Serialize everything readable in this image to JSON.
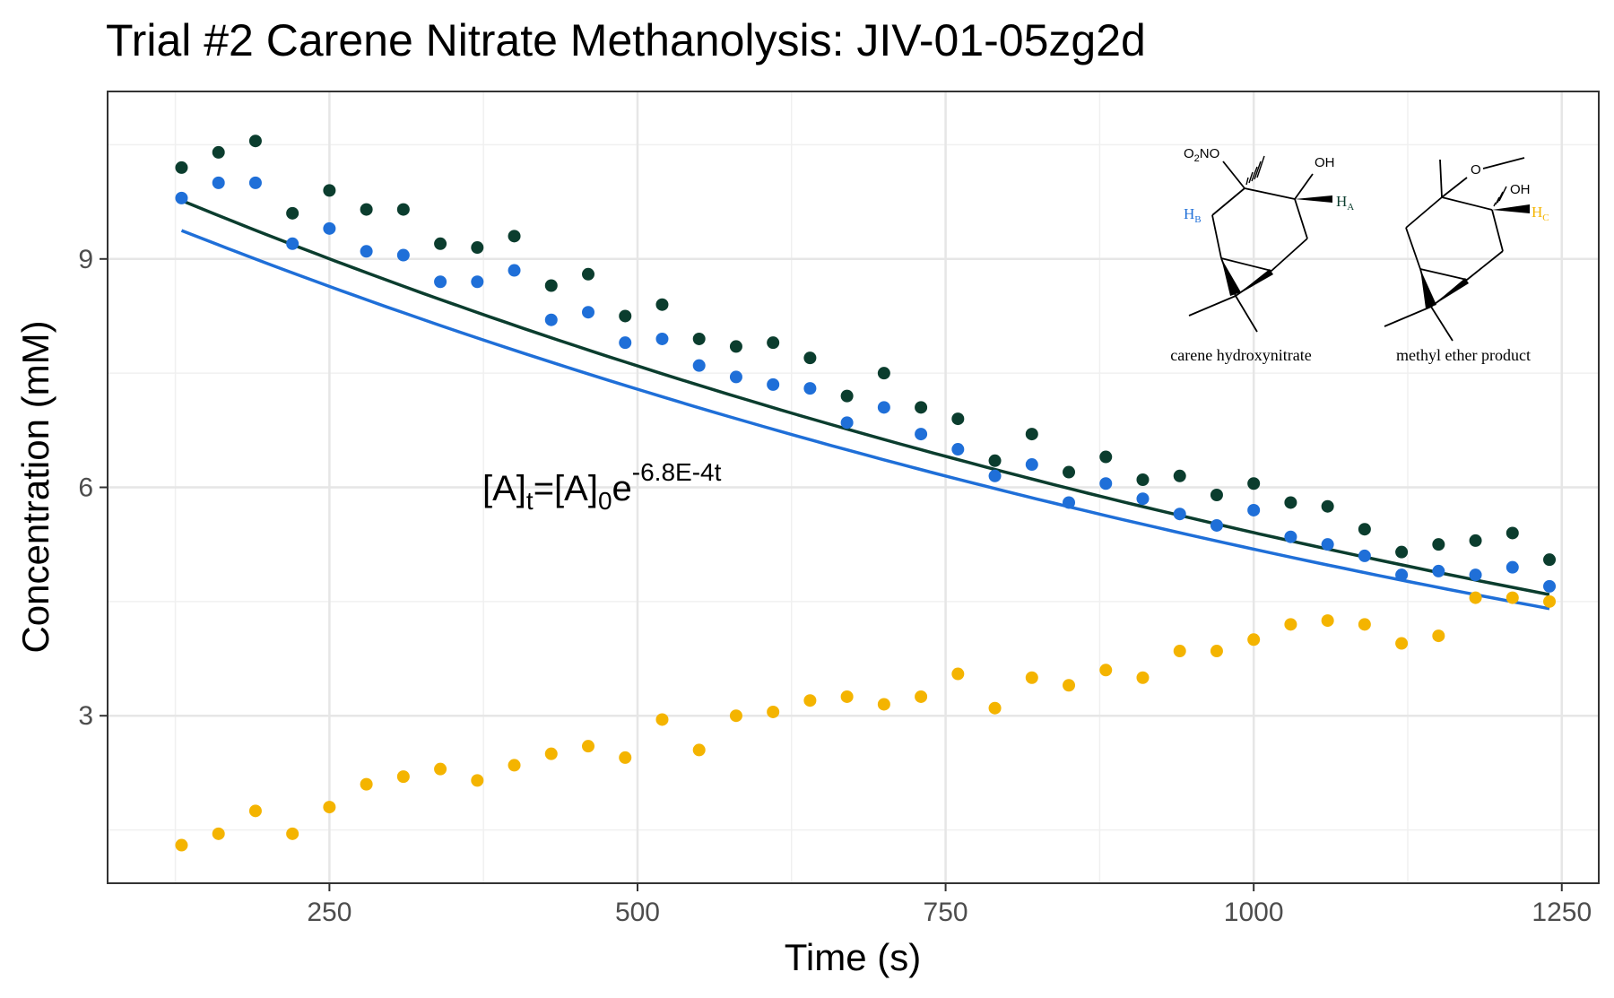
{
  "chart_data": {
    "type": "scatter",
    "title": "Trial #2 Carene Nitrate Methanolysis: JIV-01-05zg2d",
    "xlabel": "Time (s)",
    "ylabel": "Concentration (mM)",
    "xlim": [
      70,
      1280
    ],
    "ylim": [
      0.8,
      11.2
    ],
    "x_ticks": [
      250,
      500,
      750,
      1000,
      1250
    ],
    "x_tick_labels": [
      "250",
      "500",
      "750",
      "1000",
      "1250"
    ],
    "y_ticks": [
      3,
      6,
      9
    ],
    "y_tick_labels": [
      "3",
      "6",
      "9"
    ],
    "grid": true,
    "legend": "none",
    "x": [
      130,
      160,
      190,
      220,
      250,
      280,
      310,
      340,
      370,
      400,
      430,
      460,
      490,
      520,
      550,
      580,
      610,
      640,
      670,
      700,
      730,
      760,
      790,
      820,
      850,
      880,
      910,
      940,
      970,
      1000,
      1030,
      1060,
      1090,
      1120,
      1150,
      1180,
      1210,
      1240
    ],
    "series": [
      {
        "color": "#0b3d2e",
        "values": [
          10.2,
          10.4,
          10.55,
          9.6,
          9.9,
          9.65,
          9.65,
          9.2,
          9.15,
          9.3,
          8.65,
          8.8,
          8.25,
          8.4,
          7.95,
          7.85,
          7.9,
          7.7,
          7.2,
          7.5,
          7.05,
          6.9,
          6.35,
          6.7,
          6.2,
          6.4,
          6.1,
          6.15,
          5.9,
          6.05,
          5.8,
          5.75,
          5.45,
          5.15,
          5.25,
          5.3,
          5.4,
          5.05
        ],
        "fit": {
          "a0": 10.67,
          "k": 0.00068
        }
      },
      {
        "color": "#1f6fd8",
        "values": [
          9.8,
          10.0,
          10.0,
          9.2,
          9.4,
          9.1,
          9.05,
          8.7,
          8.7,
          8.85,
          8.2,
          8.3,
          7.9,
          7.95,
          7.6,
          7.45,
          7.35,
          7.3,
          6.85,
          7.05,
          6.7,
          6.5,
          6.15,
          6.3,
          5.8,
          6.05,
          5.85,
          5.65,
          5.5,
          5.7,
          5.35,
          5.25,
          5.1,
          4.85,
          4.9,
          4.85,
          4.95,
          4.7
        ],
        "fit": {
          "a0": 10.24,
          "k": 0.00068
        }
      },
      {
        "color": "#f4b400",
        "values": [
          1.3,
          1.45,
          1.75,
          1.45,
          1.8,
          2.1,
          2.2,
          2.3,
          2.15,
          2.35,
          2.5,
          2.6,
          2.45,
          2.95,
          2.55,
          3.0,
          3.05,
          3.2,
          3.25,
          3.15,
          3.25,
          3.55,
          3.1,
          3.5,
          3.4,
          3.6,
          3.5,
          3.85,
          3.85,
          4.0,
          4.2,
          4.25,
          4.2,
          3.95,
          4.05,
          4.55,
          4.55,
          4.5
        ]
      }
    ],
    "annotation": {
      "base": "[A]",
      "sub_t": "t",
      "equals": "=[A]",
      "sub_0": "0",
      "e": "e",
      "exponent": "-6.8E-4t"
    },
    "inset": {
      "left_caption": "carene hydroxynitrate",
      "right_caption": "methyl ether product",
      "o2no": "O",
      "o2no_sub": "2",
      "o2no_rest": "NO",
      "oh_left": "OH",
      "oh_right": "OH",
      "ha": "H",
      "ha_sub": "A",
      "hb": "H",
      "hb_sub": "B",
      "hc": "H",
      "hc_sub": "C",
      "o_ether": "O",
      "colors": {
        "hb": "#1f6fd8",
        "ha": "#0b3d2e",
        "hc": "#f4b400"
      }
    }
  }
}
